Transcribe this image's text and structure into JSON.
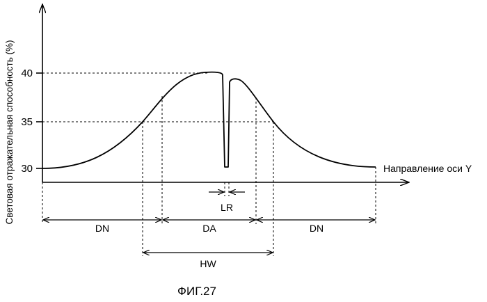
{
  "axes": {
    "y_title": "Световая отражательная способность (%)",
    "x_title": "Направление оси Y",
    "y_ticks": [
      "40",
      "35",
      "30"
    ]
  },
  "dimensions": {
    "dn_left": "DN",
    "da": "DA",
    "dn_right": "DN",
    "hw": "HW",
    "lr": "LR"
  },
  "caption": "ФИГ.27"
}
